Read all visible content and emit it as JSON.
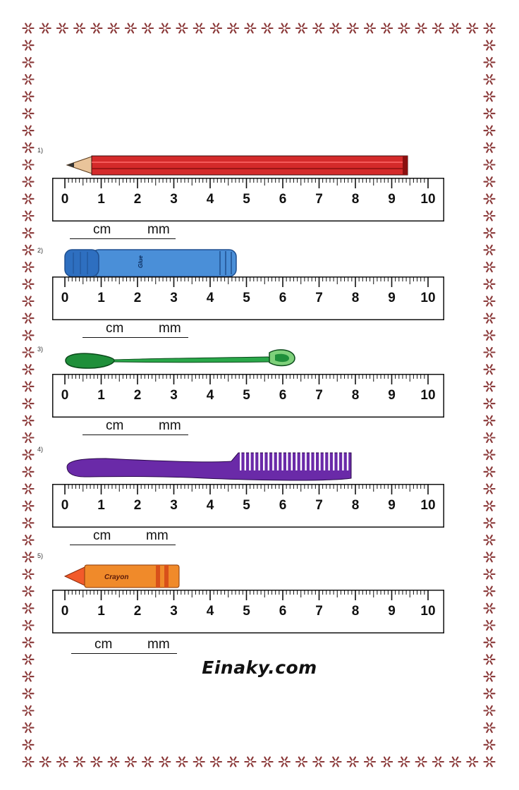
{
  "worksheet": {
    "problems": [
      {
        "number": "1)",
        "object": "pencil",
        "label": "",
        "length_cm": 9.5,
        "unit_cm": "cm",
        "unit_mm": "mm"
      },
      {
        "number": "2)",
        "object": "glue-stick",
        "label": "Glue",
        "length_cm": 4.8,
        "unit_cm": "cm",
        "unit_mm": "mm"
      },
      {
        "number": "3)",
        "object": "spoon",
        "label": "",
        "length_cm": 6.4,
        "unit_cm": "cm",
        "unit_mm": "mm"
      },
      {
        "number": "4)",
        "object": "comb",
        "label": "",
        "length_cm": 7.8,
        "unit_cm": "cm",
        "unit_mm": "mm"
      },
      {
        "number": "5)",
        "object": "crayon",
        "label": "Crayon",
        "length_cm": 3.2,
        "unit_cm": "cm",
        "unit_mm": "mm"
      }
    ],
    "ruler_labels": [
      "0",
      "1",
      "2",
      "3",
      "4",
      "5",
      "6",
      "7",
      "8",
      "9",
      "10"
    ],
    "brand": "Einaky.com"
  },
  "colors": {
    "border_star": "#8b3a3a",
    "pencil": "#d42a2a",
    "glue": "#4a8fd8",
    "spoon": "#1f8f3a",
    "comb": "#6a2aa8",
    "crayon": "#f08a2a"
  }
}
